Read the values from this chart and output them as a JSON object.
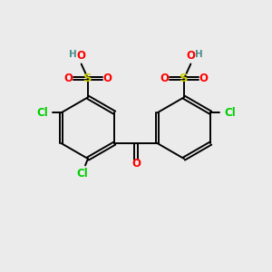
{
  "background_color": "#ebebeb",
  "atom_colors": {
    "C": "#000000",
    "H": "#4a8f8f",
    "O": "#ff0000",
    "S": "#cccc00",
    "Cl": "#00cc00"
  },
  "bond_color": "#000000",
  "figsize": [
    3.0,
    3.0
  ],
  "dpi": 100,
  "xlim": [
    0,
    10
  ],
  "ylim": [
    0,
    10
  ]
}
